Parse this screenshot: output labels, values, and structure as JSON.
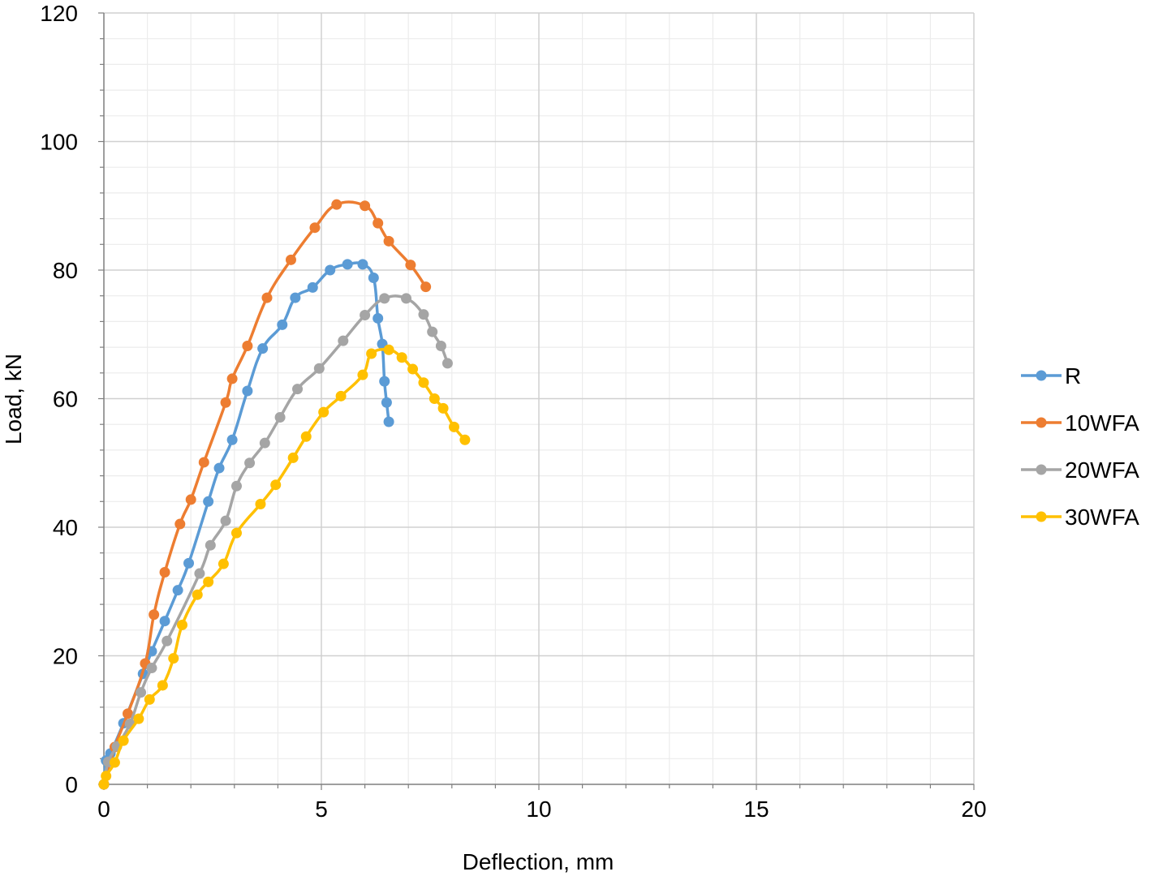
{
  "chart_data": {
    "type": "scatter",
    "xlabel": "Deflection, mm",
    "ylabel": "Load, kN",
    "xlim": [
      0,
      20
    ],
    "ylim": [
      0,
      120
    ],
    "xticks": [
      "0",
      "5",
      "10",
      "15",
      "20"
    ],
    "yticks": [
      "0",
      "20",
      "40",
      "60",
      "80",
      "100",
      "120"
    ],
    "grid": true,
    "minor_grid": true,
    "legend_position": "right",
    "series": [
      {
        "name": "R",
        "color": "#5B9BD5",
        "x": [
          0,
          0.05,
          0.15,
          0.45,
          0.9,
          1.1,
          1.4,
          1.7,
          1.95,
          2.4,
          2.65,
          2.95,
          3.3,
          3.65,
          4.1,
          4.4,
          4.8,
          5.2,
          5.6,
          5.95,
          6.2,
          6.3,
          6.4,
          6.45,
          6.5,
          6.55
        ],
        "y": [
          0,
          3.7,
          4.8,
          9.5,
          17.2,
          20.7,
          25.4,
          30.2,
          34.4,
          44.0,
          49.2,
          53.6,
          61.2,
          67.8,
          71.5,
          75.7,
          77.3,
          80.0,
          80.9,
          80.9,
          78.8,
          72.5,
          68.5,
          62.7,
          59.4,
          56.4
        ]
      },
      {
        "name": "10WFA",
        "color": "#ED7D31",
        "x": [
          0,
          0.25,
          0.55,
          0.95,
          1.15,
          1.4,
          1.75,
          2.0,
          2.3,
          2.8,
          2.95,
          3.3,
          3.75,
          4.3,
          4.85,
          5.35,
          6.0,
          6.3,
          6.55,
          7.05,
          7.4
        ],
        "y": [
          0,
          5.8,
          11.0,
          18.8,
          26.4,
          33.0,
          40.5,
          44.3,
          50.1,
          59.4,
          63.1,
          68.2,
          75.7,
          81.6,
          86.6,
          90.2,
          90.0,
          87.3,
          84.5,
          80.8,
          77.4
        ]
      },
      {
        "name": "20WFA",
        "color": "#A5A5A5",
        "x": [
          0,
          0.1,
          0.3,
          0.6,
          0.85,
          1.1,
          1.45,
          2.2,
          2.45,
          2.8,
          3.05,
          3.35,
          3.7,
          4.05,
          4.45,
          4.95,
          5.5,
          6.0,
          6.45,
          6.95,
          7.35,
          7.55,
          7.75,
          7.9
        ],
        "y": [
          0,
          3.5,
          5.9,
          9.4,
          14.3,
          18.1,
          22.3,
          32.8,
          37.2,
          41.0,
          46.4,
          50.0,
          53.1,
          57.1,
          61.5,
          64.7,
          69.0,
          73.0,
          75.6,
          75.6,
          73.1,
          70.4,
          68.2,
          65.5
        ]
      },
      {
        "name": "30WFA",
        "color": "#FFC000",
        "x": [
          0,
          0.05,
          0.25,
          0.45,
          0.8,
          1.05,
          1.35,
          1.6,
          1.8,
          2.15,
          2.4,
          2.75,
          3.05,
          3.6,
          3.95,
          4.35,
          4.65,
          5.05,
          5.45,
          5.95,
          6.15,
          6.55,
          6.85,
          7.1,
          7.35,
          7.6,
          7.8,
          8.05,
          8.3
        ],
        "y": [
          0,
          1.3,
          3.4,
          6.8,
          10.2,
          13.2,
          15.4,
          19.6,
          24.8,
          29.5,
          31.5,
          34.3,
          39.1,
          43.6,
          46.6,
          50.8,
          54.1,
          57.9,
          60.4,
          63.7,
          67.0,
          67.6,
          66.4,
          64.6,
          62.5,
          60.0,
          58.5,
          55.6,
          53.6
        ]
      }
    ]
  }
}
